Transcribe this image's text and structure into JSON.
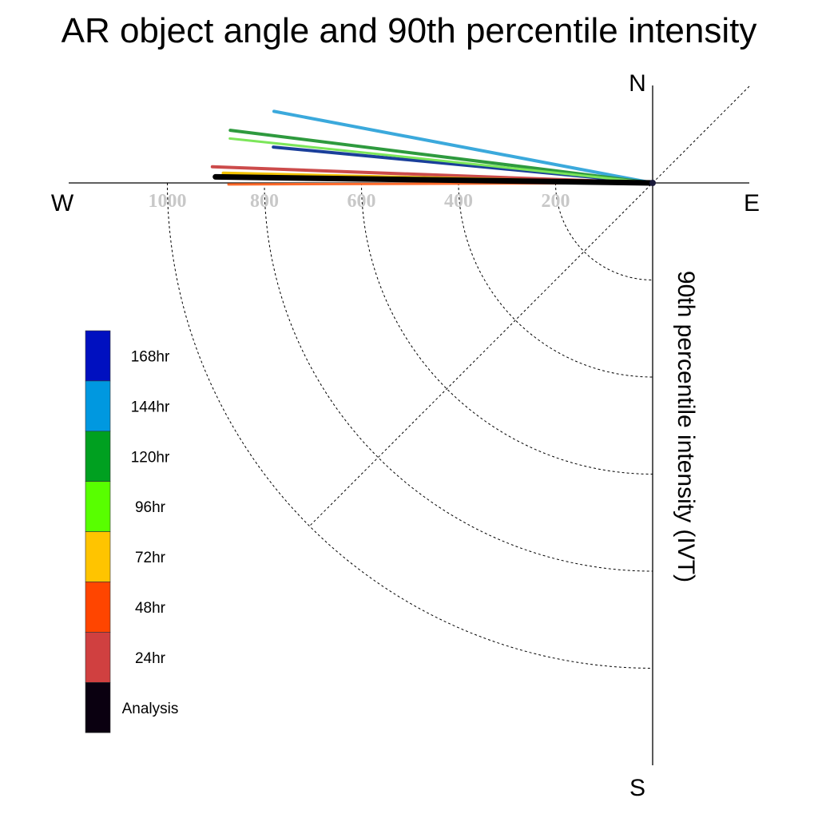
{
  "chart_data": {
    "type": "polar_vector",
    "title": "AR object angle and 90th percentile intensity",
    "radial_label": "90th percentile intensity (IVT)",
    "compass": {
      "north": "N",
      "south": "S",
      "east": "E",
      "west": "W"
    },
    "radial_ticks": [
      200,
      400,
      600,
      800,
      1000
    ],
    "radial_range": [
      0,
      1000
    ],
    "legend": [
      {
        "label": "168hr",
        "color": "#0010C0"
      },
      {
        "label": "144hr",
        "color": "#0098E0"
      },
      {
        "label": "120hr",
        "color": "#00A020"
      },
      {
        "label": "96hr",
        "color": "#58FF00"
      },
      {
        "label": "72hr",
        "color": "#FFC400"
      },
      {
        "label": "48hr",
        "color": "#FF4500"
      },
      {
        "label": "24hr",
        "color": "#D04040"
      },
      {
        "label": "Analysis",
        "color": "#0A0010"
      }
    ],
    "series": [
      {
        "name": "144hr",
        "color": "#3BA9DC",
        "angle_deg": 169.3,
        "intensity": 794,
        "width": 4
      },
      {
        "name": "120hr",
        "color": "#2E9A3E",
        "angle_deg": 172.9,
        "intensity": 877,
        "width": 4
      },
      {
        "name": "168hr",
        "color": "#1A3F9A",
        "angle_deg": 174.6,
        "intensity": 785,
        "width": 4
      },
      {
        "name": "96hr",
        "color": "#7CE65A",
        "angle_deg": 174.0,
        "intensity": 876,
        "width": 3
      },
      {
        "name": "24hr",
        "color": "#CC4B4B",
        "angle_deg": 177.9,
        "intensity": 908,
        "width": 4
      },
      {
        "name": "72hr",
        "color": "#F2C200",
        "angle_deg": 178.7,
        "intensity": 885,
        "width": 4
      },
      {
        "name": "48hr",
        "color": "#FF6A2A",
        "angle_deg": 180.2,
        "intensity": 874,
        "width": 3
      },
      {
        "name": "Analysis",
        "color": "#000000",
        "angle_deg": 179.2,
        "intensity": 901,
        "width": 7
      }
    ]
  }
}
